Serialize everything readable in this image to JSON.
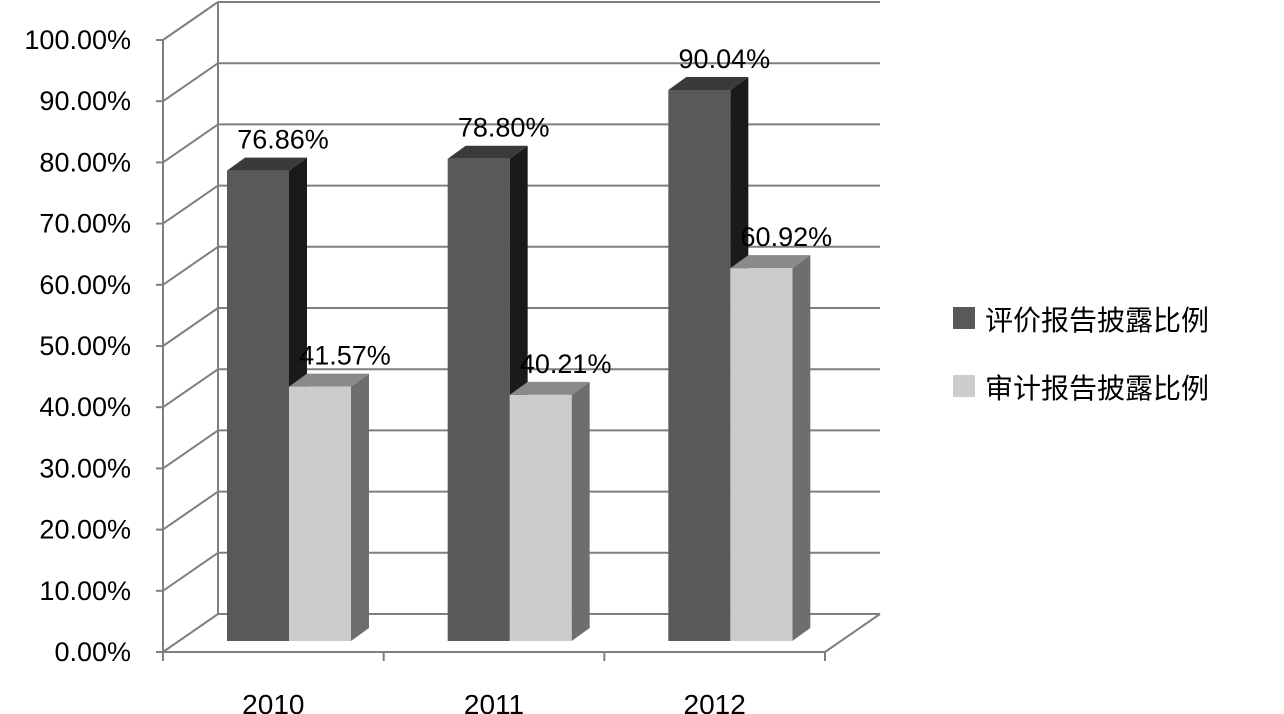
{
  "chart_data": {
    "type": "bar",
    "categories": [
      "2010",
      "2011",
      "2012"
    ],
    "series": [
      {
        "name": "评价报告披露比例",
        "values": [
          76.86,
          78.8,
          90.04
        ],
        "labels": [
          "76.86%",
          "78.80%",
          "90.04%"
        ]
      },
      {
        "name": "审计报告披露比例",
        "values": [
          41.57,
          40.21,
          60.92
        ],
        "labels": [
          "41.57%",
          "40.21%",
          "60.92%"
        ]
      }
    ],
    "ylim": [
      0,
      100
    ],
    "yticks": [
      "0.00%",
      "10.00%",
      "20.00%",
      "30.00%",
      "40.00%",
      "50.00%",
      "60.00%",
      "70.00%",
      "80.00%",
      "90.00%",
      "100.00%"
    ],
    "grid": true,
    "legend_position": "right",
    "colors": {
      "series1_front": "#595959",
      "series1_top": "#3a3a3a",
      "series1_side": "#1a1a1a",
      "series2_front": "#cccccc",
      "series2_top": "#8a8a8a",
      "series2_side": "#6e6e6e",
      "grid": "#7f7f7f"
    }
  }
}
